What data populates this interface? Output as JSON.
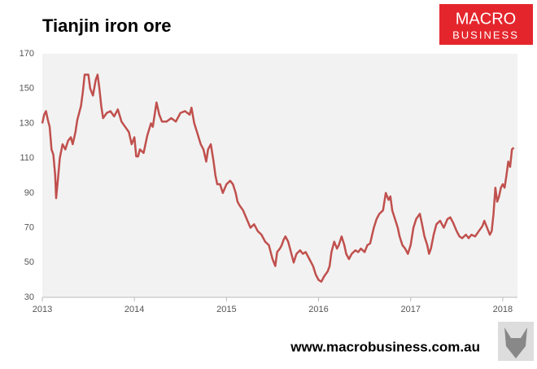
{
  "chart_data": {
    "type": "line",
    "title": "Tianjin iron ore",
    "logo": {
      "line1": "MACRO",
      "line2": "BUSINESS"
    },
    "footer": "www.macrobusiness.com.au",
    "xlim": [
      2013,
      2018.16
    ],
    "xticks": [
      2013,
      2014,
      2015,
      2016,
      2017,
      2018
    ],
    "ylim": [
      30,
      170
    ],
    "yticks": [
      30,
      50,
      70,
      90,
      110,
      130,
      150,
      170
    ],
    "grid": false,
    "x": [
      2013.0,
      2013.02,
      2013.04,
      2013.06,
      2013.08,
      2013.1,
      2013.12,
      2013.14,
      2013.15,
      2013.17,
      2013.19,
      2013.22,
      2013.25,
      2013.28,
      2013.31,
      2013.33,
      2013.36,
      2013.38,
      2013.42,
      2013.44,
      2013.46,
      2013.5,
      2013.52,
      2013.55,
      2013.58,
      2013.6,
      2013.62,
      2013.64,
      2013.66,
      2013.7,
      2013.74,
      2013.78,
      2013.82,
      2013.86,
      2013.9,
      2013.94,
      2013.97,
      2014.0,
      2014.02,
      2014.04,
      2014.06,
      2014.1,
      2014.12,
      2014.14,
      2014.18,
      2014.2,
      2014.22,
      2014.24,
      2014.27,
      2014.3,
      2014.35,
      2014.4,
      2014.45,
      2014.5,
      2014.55,
      2014.6,
      2014.62,
      2014.65,
      2014.68,
      2014.72,
      2014.75,
      2014.78,
      2014.8,
      2014.83,
      2014.86,
      2014.88,
      2014.9,
      2014.93,
      2014.96,
      2015.0,
      2015.04,
      2015.07,
      2015.1,
      2015.12,
      2015.14,
      2015.18,
      2015.22,
      2015.26,
      2015.3,
      2015.34,
      2015.38,
      2015.42,
      2015.46,
      2015.5,
      2015.53,
      2015.55,
      2015.58,
      2015.6,
      2015.62,
      2015.64,
      2015.67,
      2015.7,
      2015.73,
      2015.76,
      2015.8,
      2015.83,
      2015.86,
      2015.9,
      2015.94,
      2015.97,
      2016.0,
      2016.03,
      2016.06,
      2016.1,
      2016.12,
      2016.14,
      2016.17,
      2016.2,
      2016.22,
      2016.25,
      2016.28,
      2016.3,
      2016.33,
      2016.36,
      2016.4,
      2016.43,
      2016.46,
      2016.5,
      2016.53,
      2016.56,
      2016.6,
      2016.63,
      2016.66,
      2016.7,
      2016.73,
      2016.76,
      2016.78,
      2016.8,
      2016.83,
      2016.86,
      2016.88,
      2016.91,
      2016.94,
      2016.97,
      2017.0,
      2017.03,
      2017.06,
      2017.1,
      2017.12,
      2017.15,
      2017.18,
      2017.2,
      2017.22,
      2017.25,
      2017.28,
      2017.32,
      2017.36,
      2017.4,
      2017.43,
      2017.46,
      2017.5,
      2017.53,
      2017.56,
      2017.6,
      2017.63,
      2017.66,
      2017.7,
      2017.74,
      2017.78,
      2017.8,
      2017.83,
      2017.86,
      2017.88,
      2017.9,
      2017.92,
      2017.94,
      2017.96,
      2017.98,
      2018.0,
      2018.02,
      2018.04,
      2018.06,
      2018.08,
      2018.1,
      2018.12
    ],
    "series": [
      {
        "color": "#c0504d",
        "values": [
          130,
          135,
          137,
          132,
          128,
          115,
          112,
          100,
          87,
          98,
          110,
          118,
          115,
          120,
          122,
          118,
          125,
          132,
          140,
          148,
          158,
          158,
          150,
          146,
          155,
          158,
          150,
          140,
          133,
          136,
          137,
          134,
          138,
          131,
          128,
          125,
          118,
          122,
          111,
          111,
          115,
          113,
          118,
          123,
          130,
          128,
          135,
          142,
          135,
          131,
          131,
          133,
          131,
          136,
          137,
          135,
          139,
          130,
          125,
          118,
          115,
          108,
          115,
          118,
          108,
          100,
          95,
          95,
          90,
          95,
          97,
          95,
          90,
          85,
          83,
          80,
          75,
          70,
          72,
          68,
          66,
          62,
          60,
          52,
          48,
          56,
          58,
          60,
          63,
          65,
          62,
          56,
          50,
          55,
          57,
          55,
          56,
          52,
          48,
          43,
          40,
          39,
          42,
          45,
          48,
          56,
          62,
          58,
          60,
          65,
          60,
          55,
          52,
          55,
          57,
          56,
          58,
          56,
          60,
          61,
          70,
          75,
          78,
          80,
          90,
          86,
          88,
          80,
          75,
          70,
          65,
          60,
          58,
          55,
          60,
          70,
          75,
          78,
          73,
          65,
          60,
          55,
          58,
          66,
          72,
          74,
          70,
          75,
          76,
          73,
          68,
          65,
          64,
          66,
          64,
          66,
          65,
          68,
          71,
          74,
          70,
          66,
          68,
          78,
          93,
          85,
          88,
          93,
          95,
          93,
          100,
          108,
          105,
          115,
          116
        ]
      }
    ]
  }
}
